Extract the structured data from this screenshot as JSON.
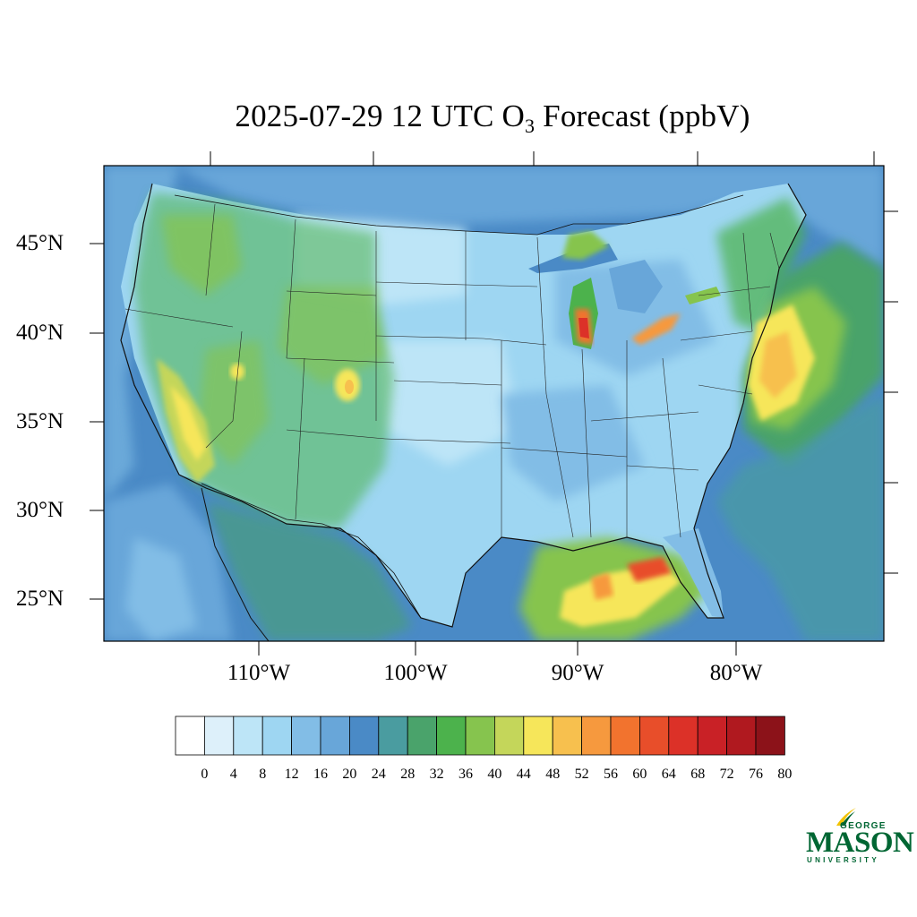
{
  "title": {
    "prefix": "2025-07-29 12 UTC O",
    "subscript": "3",
    "suffix": " Forecast (ppbV)"
  },
  "map": {
    "region": "Contiguous United States",
    "projection": "Lambert conformal",
    "variable": "Ozone (O3) forecast",
    "units": "ppbV",
    "lat_labels": [
      "45°N",
      "40°N",
      "35°N",
      "30°N",
      "25°N"
    ],
    "lon_labels": [
      "110°W",
      "100°W",
      "90°W",
      "80°W"
    ],
    "hotspots": [
      {
        "area": "Mid-Atlantic coast / offshore",
        "level_ppbv": 52
      },
      {
        "area": "Southern Lake Michigan",
        "level_ppbv": 62
      },
      {
        "area": "Lake Erie",
        "level_ppbv": 56
      },
      {
        "area": "Central Gulf of Mexico",
        "level_ppbv": 60
      },
      {
        "area": "California Central Valley",
        "level_ppbv": 48
      },
      {
        "area": "Colorado Front Range",
        "level_ppbv": 52
      }
    ]
  },
  "colorbar": {
    "labels": [
      "0",
      "4",
      "8",
      "12",
      "16",
      "20",
      "24",
      "28",
      "32",
      "36",
      "40",
      "44",
      "48",
      "52",
      "56",
      "60",
      "64",
      "68",
      "72",
      "76",
      "80"
    ],
    "colors": [
      "#ffffff",
      "#ddf0fa",
      "#bde5f7",
      "#9ed6f2",
      "#82bde6",
      "#68a6d9",
      "#4a8ac6",
      "#4a9ca0",
      "#4aa36b",
      "#4cb24c",
      "#86c44e",
      "#c4d65a",
      "#f6e65a",
      "#f7c04e",
      "#f6993e",
      "#f2732e",
      "#e84e2a",
      "#dc3128",
      "#c92126",
      "#b0191f",
      "#8c1219"
    ]
  },
  "logo": {
    "line1": "GEORGE",
    "line2": "MASON",
    "line3": "UNIVERSITY",
    "color": "#006633",
    "accent": "#f2c300"
  }
}
